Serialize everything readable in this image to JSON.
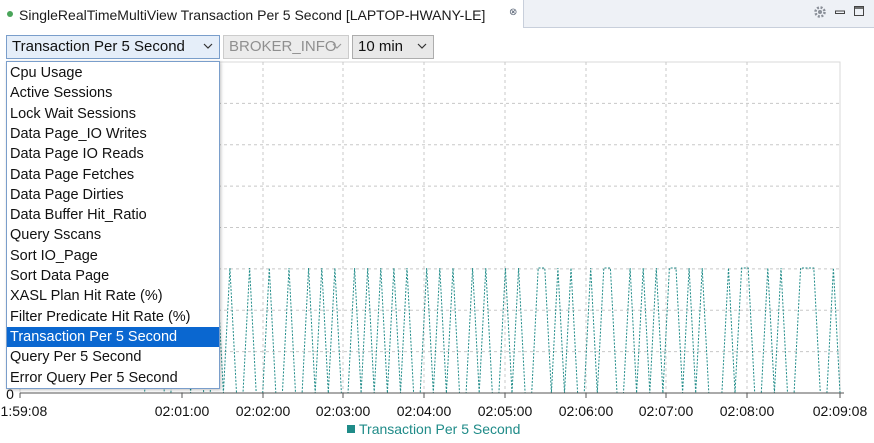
{
  "tab": {
    "title": "SingleRealTimeMultiView Transaction Per 5 Second [LAPTOP-HWANY-LE]",
    "close_glyph": "⊗"
  },
  "toolbar": {
    "metric_value": "Transaction Per 5 Second",
    "broker_value": "BROKER_INFO",
    "broker_enabled": false,
    "time_value": "10 min"
  },
  "dropdown": {
    "items": [
      "Cpu Usage",
      "Active Sessions",
      "Lock Wait Sessions",
      "Data Page_IO Writes",
      "Data Page IO Reads",
      "Data Page Fetches",
      "Data Page Dirties",
      "Data Buffer Hit_Ratio",
      "Query Sscans",
      "Sort IO_Page",
      "Sort Data Page",
      "XASL Plan Hit Rate (%)",
      "Filter Predicate Hit Rate (%)",
      "Transaction Per 5 Second",
      "Query Per 5 Second",
      "Error Query Per 5 Second"
    ],
    "selected_index": 13
  },
  "chart_data": {
    "type": "line",
    "x_ticks": [
      "01:59:08",
      "02:01:00",
      "02:02:00",
      "02:03:00",
      "02:04:00",
      "02:05:00",
      "02:06:00",
      "02:07:00",
      "02:08:00",
      "02:09:08"
    ],
    "y_ticks": [
      "0"
    ],
    "grid": true,
    "legend_position": "bottom",
    "series": [
      {
        "name": "Transaction Per 5 Second",
        "color": "#1f8b88",
        "values": [
          0,
          0,
          0,
          0,
          0,
          0,
          0,
          0,
          0,
          0,
          0,
          0,
          0,
          0,
          0,
          0,
          0,
          0,
          0,
          0,
          1,
          1,
          0,
          0,
          1,
          1,
          0,
          1,
          0,
          0,
          1,
          0,
          1,
          0,
          0,
          1,
          0,
          0,
          1,
          0,
          0,
          1,
          0,
          0,
          1,
          0,
          1,
          0,
          1,
          0,
          0,
          1,
          0,
          1,
          0,
          1,
          0,
          1,
          0,
          1,
          0,
          0,
          1,
          0,
          1,
          0,
          1,
          0,
          0,
          1,
          0,
          1,
          0,
          0,
          1,
          0,
          1,
          0,
          0,
          1,
          1,
          0,
          1,
          0,
          1,
          0,
          0,
          1,
          0,
          1,
          1,
          0,
          0,
          1,
          0,
          1,
          0,
          1,
          0,
          1,
          1,
          0,
          1,
          0,
          1,
          0,
          0,
          0,
          1,
          0,
          1,
          1,
          0,
          0,
          1,
          0,
          1,
          0,
          0,
          1,
          1,
          1,
          0,
          0,
          1,
          0
        ]
      }
    ]
  }
}
